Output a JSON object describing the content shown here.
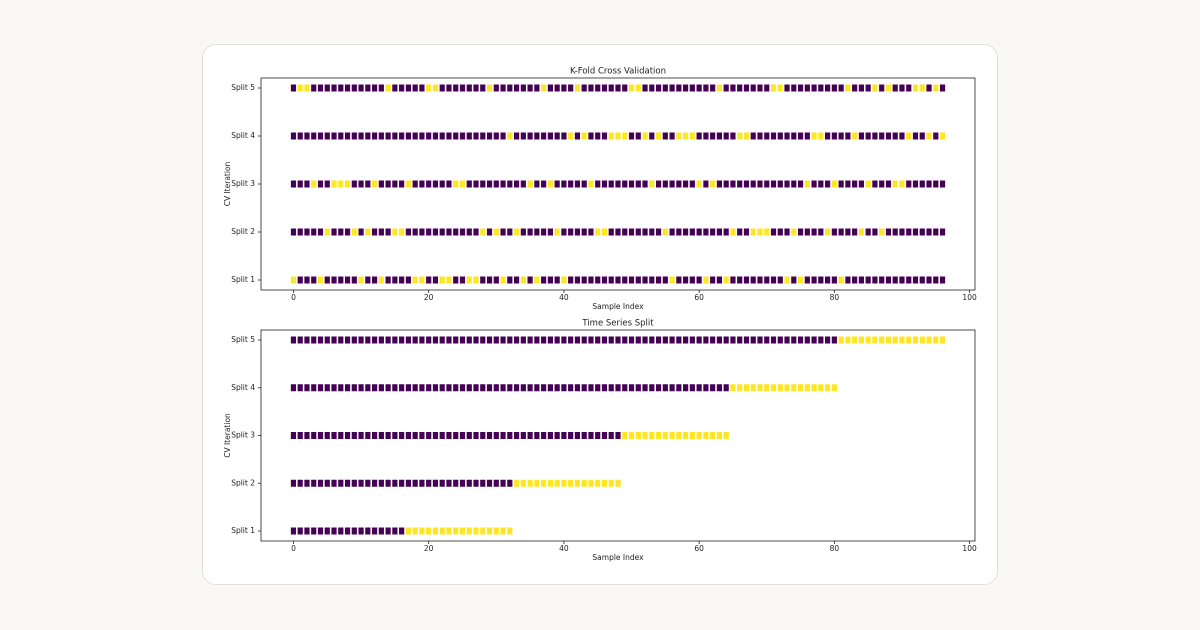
{
  "chart_data": [
    {
      "type": "scatter",
      "title": "K-Fold Cross Validation",
      "x_label": "Sample Index",
      "y_label": "CV Iteration",
      "categories": [
        "Split 1",
        "Split 2",
        "Split 3",
        "Split 4",
        "Split 5"
      ],
      "colors": [
        "#440154",
        "#fde725"
      ],
      "xlim": [
        -4.8,
        100.8
      ],
      "xticks": [
        0,
        20,
        40,
        60,
        80,
        100
      ],
      "x": [
        0,
        1,
        2,
        3,
        4,
        5,
        6,
        7,
        8,
        9,
        10,
        11,
        12,
        13,
        14,
        15,
        16,
        17,
        18,
        19,
        20,
        21,
        22,
        23,
        24,
        25,
        26,
        27,
        28,
        29,
        30,
        31,
        32,
        33,
        34,
        35,
        36,
        37,
        38,
        39,
        40,
        41,
        42,
        43,
        44,
        45,
        46,
        47,
        48,
        49,
        50,
        51,
        52,
        53,
        54,
        55,
        56,
        57,
        58,
        59,
        60,
        61,
        62,
        63,
        64,
        65,
        66,
        67,
        68,
        69,
        70,
        71,
        72,
        73,
        74,
        75,
        76,
        77,
        78,
        79,
        80,
        81,
        82,
        83,
        84,
        85,
        86,
        87,
        88,
        89,
        90,
        91,
        92,
        93,
        94,
        95,
        96
      ],
      "values": [
        [
          1,
          0,
          0,
          0,
          1,
          0,
          0,
          0,
          0,
          0,
          1,
          0,
          0,
          1,
          0,
          0,
          0,
          0,
          1,
          1,
          0,
          0,
          1,
          1,
          0,
          0,
          1,
          1,
          0,
          0,
          0,
          1,
          0,
          0,
          1,
          0,
          1,
          0,
          0,
          0,
          1,
          0,
          0,
          0,
          0,
          0,
          0,
          0,
          0,
          0,
          0,
          0,
          0,
          0,
          0,
          0,
          1,
          0,
          0,
          0,
          0,
          1,
          0,
          0,
          1,
          0,
          0,
          0,
          0,
          0,
          0,
          0,
          0,
          1,
          0,
          1,
          0,
          0,
          0,
          0,
          0,
          1,
          0,
          0,
          0,
          0,
          0,
          0,
          0,
          0,
          0,
          0,
          0,
          0,
          0,
          0,
          0
        ],
        [
          0,
          0,
          0,
          0,
          0,
          1,
          0,
          0,
          0,
          1,
          0,
          1,
          0,
          0,
          0,
          1,
          1,
          0,
          0,
          0,
          0,
          0,
          0,
          0,
          0,
          0,
          0,
          0,
          1,
          0,
          1,
          0,
          0,
          1,
          0,
          0,
          0,
          0,
          0,
          1,
          0,
          0,
          0,
          0,
          0,
          1,
          1,
          0,
          0,
          0,
          0,
          0,
          0,
          0,
          0,
          1,
          0,
          0,
          0,
          0,
          0,
          0,
          0,
          0,
          0,
          1,
          0,
          0,
          1,
          1,
          1,
          0,
          0,
          0,
          1,
          0,
          0,
          0,
          0,
          1,
          0,
          0,
          0,
          0,
          1,
          0,
          0,
          1,
          0,
          0,
          0,
          0,
          0,
          0,
          0,
          0,
          0
        ],
        [
          0,
          0,
          0,
          1,
          0,
          0,
          1,
          1,
          1,
          0,
          0,
          0,
          1,
          0,
          0,
          0,
          0,
          1,
          0,
          0,
          0,
          0,
          0,
          0,
          1,
          1,
          0,
          0,
          0,
          0,
          0,
          0,
          0,
          0,
          0,
          1,
          0,
          0,
          1,
          0,
          0,
          0,
          0,
          0,
          1,
          0,
          0,
          0,
          0,
          0,
          0,
          0,
          0,
          1,
          0,
          0,
          0,
          0,
          0,
          0,
          1,
          0,
          1,
          0,
          0,
          0,
          0,
          0,
          0,
          0,
          0,
          0,
          0,
          0,
          0,
          0,
          1,
          0,
          0,
          0,
          1,
          0,
          0,
          0,
          0,
          1,
          0,
          0,
          0,
          1,
          1,
          0,
          0,
          0,
          0,
          0,
          0
        ],
        [
          0,
          0,
          0,
          0,
          0,
          0,
          0,
          0,
          0,
          0,
          0,
          0,
          0,
          0,
          0,
          0,
          0,
          0,
          0,
          0,
          0,
          0,
          0,
          0,
          0,
          0,
          0,
          0,
          0,
          0,
          0,
          0,
          1,
          0,
          0,
          0,
          0,
          0,
          0,
          0,
          0,
          1,
          0,
          1,
          0,
          0,
          0,
          1,
          1,
          1,
          0,
          0,
          1,
          0,
          1,
          0,
          0,
          1,
          1,
          1,
          0,
          0,
          0,
          0,
          0,
          0,
          1,
          1,
          0,
          0,
          0,
          0,
          0,
          0,
          0,
          0,
          0,
          1,
          1,
          0,
          0,
          0,
          0,
          1,
          0,
          0,
          0,
          0,
          0,
          0,
          0,
          1,
          0,
          0,
          1,
          0,
          1
        ],
        [
          0,
          1,
          1,
          0,
          0,
          0,
          0,
          0,
          0,
          0,
          0,
          0,
          0,
          0,
          1,
          0,
          0,
          0,
          0,
          0,
          1,
          1,
          0,
          0,
          0,
          0,
          0,
          0,
          0,
          1,
          0,
          0,
          0,
          0,
          0,
          0,
          0,
          1,
          0,
          0,
          0,
          0,
          1,
          0,
          0,
          0,
          0,
          0,
          0,
          0,
          1,
          1,
          0,
          0,
          0,
          0,
          0,
          0,
          0,
          0,
          0,
          0,
          0,
          1,
          0,
          0,
          0,
          0,
          0,
          0,
          0,
          1,
          1,
          0,
          0,
          0,
          0,
          0,
          0,
          0,
          0,
          0,
          1,
          0,
          0,
          0,
          1,
          0,
          1,
          0,
          0,
          0,
          1,
          1,
          0,
          1,
          0
        ]
      ]
    },
    {
      "type": "scatter",
      "title": "Time Series Split",
      "x_label": "Sample Index",
      "y_label": "CV Iteration",
      "categories": [
        "Split 1",
        "Split 2",
        "Split 3",
        "Split 4",
        "Split 5"
      ],
      "colors": [
        "#440154",
        "#fde725"
      ],
      "xlim": [
        -4.8,
        100.8
      ],
      "xticks": [
        0,
        20,
        40,
        60,
        80,
        100
      ],
      "x": [
        0,
        1,
        2,
        3,
        4,
        5,
        6,
        7,
        8,
        9,
        10,
        11,
        12,
        13,
        14,
        15,
        16,
        17,
        18,
        19,
        20,
        21,
        22,
        23,
        24,
        25,
        26,
        27,
        28,
        29,
        30,
        31,
        32,
        33,
        34,
        35,
        36,
        37,
        38,
        39,
        40,
        41,
        42,
        43,
        44,
        45,
        46,
        47,
        48,
        49,
        50,
        51,
        52,
        53,
        54,
        55,
        56,
        57,
        58,
        59,
        60,
        61,
        62,
        63,
        64,
        65,
        66,
        67,
        68,
        69,
        70,
        71,
        72,
        73,
        74,
        75,
        76,
        77,
        78,
        79,
        80,
        81,
        82,
        83,
        84,
        85,
        86,
        87,
        88,
        89,
        90,
        91,
        92,
        93,
        94,
        95,
        96
      ],
      "values": [
        [
          0,
          0,
          0,
          0,
          0,
          0,
          0,
          0,
          0,
          0,
          0,
          0,
          0,
          0,
          0,
          0,
          0,
          1,
          1,
          1,
          1,
          1,
          1,
          1,
          1,
          1,
          1,
          1,
          1,
          1,
          1,
          1,
          1,
          null,
          null,
          null,
          null,
          null,
          null,
          null,
          null,
          null,
          null,
          null,
          null,
          null,
          null,
          null,
          null,
          null,
          null,
          null,
          null,
          null,
          null,
          null,
          null,
          null,
          null,
          null,
          null,
          null,
          null,
          null,
          null,
          null,
          null,
          null,
          null,
          null,
          null,
          null,
          null,
          null,
          null,
          null,
          null,
          null,
          null,
          null,
          null,
          null,
          null,
          null,
          null,
          null,
          null,
          null,
          null,
          null,
          null,
          null,
          null,
          null,
          null,
          null,
          null
        ],
        [
          0,
          0,
          0,
          0,
          0,
          0,
          0,
          0,
          0,
          0,
          0,
          0,
          0,
          0,
          0,
          0,
          0,
          0,
          0,
          0,
          0,
          0,
          0,
          0,
          0,
          0,
          0,
          0,
          0,
          0,
          0,
          0,
          0,
          1,
          1,
          1,
          1,
          1,
          1,
          1,
          1,
          1,
          1,
          1,
          1,
          1,
          1,
          1,
          1,
          null,
          null,
          null,
          null,
          null,
          null,
          null,
          null,
          null,
          null,
          null,
          null,
          null,
          null,
          null,
          null,
          null,
          null,
          null,
          null,
          null,
          null,
          null,
          null,
          null,
          null,
          null,
          null,
          null,
          null,
          null,
          null,
          null,
          null,
          null,
          null,
          null,
          null,
          null,
          null,
          null,
          null,
          null,
          null,
          null,
          null,
          null,
          null
        ],
        [
          0,
          0,
          0,
          0,
          0,
          0,
          0,
          0,
          0,
          0,
          0,
          0,
          0,
          0,
          0,
          0,
          0,
          0,
          0,
          0,
          0,
          0,
          0,
          0,
          0,
          0,
          0,
          0,
          0,
          0,
          0,
          0,
          0,
          0,
          0,
          0,
          0,
          0,
          0,
          0,
          0,
          0,
          0,
          0,
          0,
          0,
          0,
          0,
          0,
          1,
          1,
          1,
          1,
          1,
          1,
          1,
          1,
          1,
          1,
          1,
          1,
          1,
          1,
          1,
          1,
          null,
          null,
          null,
          null,
          null,
          null,
          null,
          null,
          null,
          null,
          null,
          null,
          null,
          null,
          null,
          null,
          null,
          null,
          null,
          null,
          null,
          null,
          null,
          null,
          null,
          null,
          null,
          null,
          null,
          null,
          null,
          null
        ],
        [
          0,
          0,
          0,
          0,
          0,
          0,
          0,
          0,
          0,
          0,
          0,
          0,
          0,
          0,
          0,
          0,
          0,
          0,
          0,
          0,
          0,
          0,
          0,
          0,
          0,
          0,
          0,
          0,
          0,
          0,
          0,
          0,
          0,
          0,
          0,
          0,
          0,
          0,
          0,
          0,
          0,
          0,
          0,
          0,
          0,
          0,
          0,
          0,
          0,
          0,
          0,
          0,
          0,
          0,
          0,
          0,
          0,
          0,
          0,
          0,
          0,
          0,
          0,
          0,
          0,
          1,
          1,
          1,
          1,
          1,
          1,
          1,
          1,
          1,
          1,
          1,
          1,
          1,
          1,
          1,
          1,
          null,
          null,
          null,
          null,
          null,
          null,
          null,
          null,
          null,
          null,
          null,
          null,
          null,
          null,
          null,
          null
        ],
        [
          0,
          0,
          0,
          0,
          0,
          0,
          0,
          0,
          0,
          0,
          0,
          0,
          0,
          0,
          0,
          0,
          0,
          0,
          0,
          0,
          0,
          0,
          0,
          0,
          0,
          0,
          0,
          0,
          0,
          0,
          0,
          0,
          0,
          0,
          0,
          0,
          0,
          0,
          0,
          0,
          0,
          0,
          0,
          0,
          0,
          0,
          0,
          0,
          0,
          0,
          0,
          0,
          0,
          0,
          0,
          0,
          0,
          0,
          0,
          0,
          0,
          0,
          0,
          0,
          0,
          0,
          0,
          0,
          0,
          0,
          0,
          0,
          0,
          0,
          0,
          0,
          0,
          0,
          0,
          0,
          0,
          1,
          1,
          1,
          1,
          1,
          1,
          1,
          1,
          1,
          1,
          1,
          1,
          1,
          1,
          1,
          1
        ]
      ]
    }
  ]
}
